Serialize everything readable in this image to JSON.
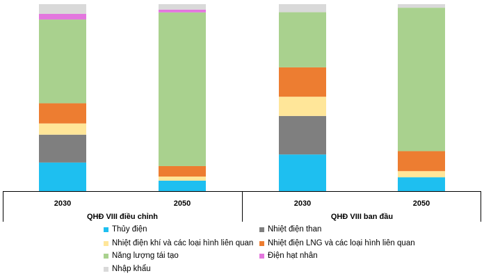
{
  "chart_data": {
    "type": "bar",
    "stacked": true,
    "normalized_percent": true,
    "categories": [
      "2030",
      "2050",
      "2030",
      "2050"
    ],
    "groups": [
      {
        "label": "QHĐ VIII điều chỉnh",
        "categories": [
          "2030",
          "2050"
        ]
      },
      {
        "label": "QHĐ VIII ban đầu",
        "categories": [
          "2030",
          "2050"
        ]
      }
    ],
    "ylim": [
      0,
      100
    ],
    "grid": false,
    "legend_placement": "bottom",
    "series": [
      {
        "name": "Thủy điện",
        "color": "#1ebff0",
        "values": [
          15.3,
          5.6,
          19.6,
          7.4
        ]
      },
      {
        "name": "Nhiệt điện than",
        "color": "#7f7f7f",
        "values": [
          14.9,
          0,
          20.6,
          0
        ]
      },
      {
        "name": "Nhiệt điện khí và các loại hình liên quan",
        "color": "#ffe699",
        "values": [
          6.0,
          2.2,
          10.3,
          3.3
        ]
      },
      {
        "name": "Nhiệt điện LNG và các loại hình liên quan",
        "color": "#ed7d31",
        "values": [
          10.8,
          5.6,
          15.7,
          10.7
        ]
      },
      {
        "name": "Năng lượng tái tạo",
        "color": "#a9d18e",
        "values": [
          44.8,
          82.2,
          29.5,
          76.7
        ]
      },
      {
        "name": "Điện hạt nhân",
        "color": "#e377de",
        "values": [
          3.0,
          1.5,
          0,
          0
        ]
      },
      {
        "name": "Nhập khẩu",
        "color": "#d9d9d9",
        "values": [
          5.2,
          2.9,
          4.3,
          1.9
        ]
      }
    ]
  }
}
